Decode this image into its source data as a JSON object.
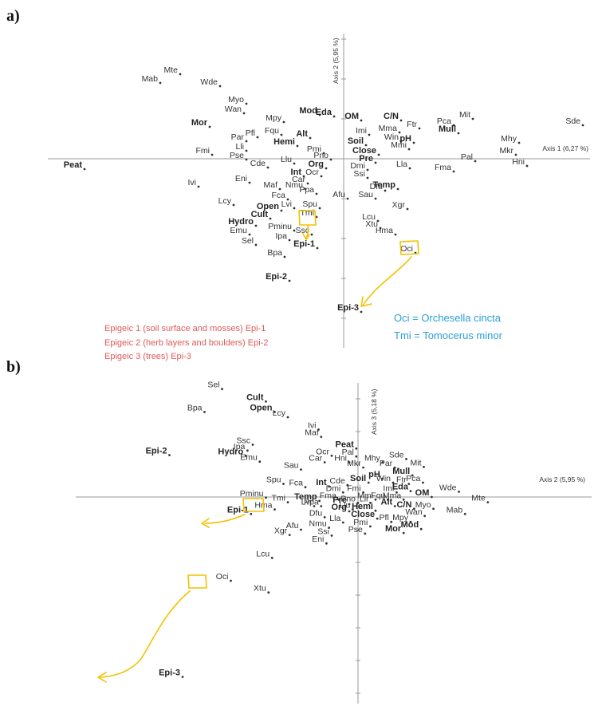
{
  "chart_data": [
    {
      "type": "scatter",
      "panel_label": "a)",
      "xlabel": "Axis 1 (6,27 %)",
      "ylabel": "Axis 2 (5,95 %)",
      "grid": false,
      "points": [
        {
          "label": "Mab",
          "x": -2.3,
          "y": 0.95,
          "bold": false
        },
        {
          "label": "Mte",
          "x": -2.05,
          "y": 1.06,
          "bold": false
        },
        {
          "label": "Wde",
          "x": -1.55,
          "y": 0.91,
          "bold": false
        },
        {
          "label": "Myo",
          "x": -1.22,
          "y": 0.69,
          "bold": false
        },
        {
          "label": "Wan",
          "x": -1.25,
          "y": 0.57,
          "bold": false
        },
        {
          "label": "Mor",
          "x": -1.68,
          "y": 0.4,
          "bold": true
        },
        {
          "label": "Mpy",
          "x": -0.75,
          "y": 0.46,
          "bold": false
        },
        {
          "label": "Fqu",
          "x": -0.78,
          "y": 0.3,
          "bold": false
        },
        {
          "label": "Pfl",
          "x": -1.08,
          "y": 0.27,
          "bold": false
        },
        {
          "label": "Par",
          "x": -1.22,
          "y": 0.22,
          "bold": false
        },
        {
          "label": "Lli",
          "x": -1.22,
          "y": 0.1,
          "bold": false
        },
        {
          "label": "Pse",
          "x": -1.22,
          "y": -0.01,
          "bold": false
        },
        {
          "label": "Fmi",
          "x": -1.65,
          "y": 0.05,
          "bold": false
        },
        {
          "label": "Hemi",
          "x": -0.58,
          "y": 0.16,
          "bold": true
        },
        {
          "label": "Alt",
          "x": -0.42,
          "y": 0.26,
          "bold": true
        },
        {
          "label": "Mod",
          "x": -0.3,
          "y": 0.55,
          "bold": true
        },
        {
          "label": "Eda",
          "x": -0.12,
          "y": 0.53,
          "bold": true
        },
        {
          "label": "Pmi",
          "x": -0.25,
          "y": 0.07,
          "bold": false
        },
        {
          "label": "Pno",
          "x": -0.16,
          "y": -0.01,
          "bold": false
        },
        {
          "label": "Peat",
          "x": -3.25,
          "y": -0.13,
          "bold": true
        },
        {
          "label": "Cde",
          "x": -0.95,
          "y": -0.11,
          "bold": false
        },
        {
          "label": "Llu",
          "x": -0.62,
          "y": -0.06,
          "bold": false
        },
        {
          "label": "Org",
          "x": -0.22,
          "y": -0.12,
          "bold": true
        },
        {
          "label": "Int",
          "x": -0.5,
          "y": -0.22,
          "bold": true
        },
        {
          "label": "Ocr",
          "x": -0.28,
          "y": -0.22,
          "bold": false
        },
        {
          "label": "Car",
          "x": -0.45,
          "y": -0.31,
          "bold": false
        },
        {
          "label": "Nmu",
          "x": -0.48,
          "y": -0.38,
          "bold": false
        },
        {
          "label": "Ppa",
          "x": -0.34,
          "y": -0.44,
          "bold": false
        },
        {
          "label": "Eni",
          "x": -1.18,
          "y": -0.3,
          "bold": false
        },
        {
          "label": "Ivi",
          "x": -1.82,
          "y": -0.35,
          "bold": false
        },
        {
          "label": "Maf",
          "x": -0.8,
          "y": -0.38,
          "bold": false
        },
        {
          "label": "Fca",
          "x": -0.7,
          "y": -0.51,
          "bold": false
        },
        {
          "label": "Lvi",
          "x": -0.62,
          "y": -0.62,
          "bold": false
        },
        {
          "label": "Open",
          "x": -0.78,
          "y": -0.65,
          "bold": true
        },
        {
          "label": "Cult",
          "x": -0.92,
          "y": -0.75,
          "bold": true
        },
        {
          "label": "Lcy",
          "x": -1.38,
          "y": -0.58,
          "bold": false
        },
        {
          "label": "Hydro",
          "x": -1.1,
          "y": -0.84,
          "bold": true
        },
        {
          "label": "Emu",
          "x": -1.18,
          "y": -0.95,
          "bold": false
        },
        {
          "label": "Sel",
          "x": -1.1,
          "y": -1.08,
          "bold": false
        },
        {
          "label": "Spu",
          "x": -0.3,
          "y": -0.62,
          "bold": false
        },
        {
          "label": "Tmi",
          "x": -0.34,
          "y": -0.73,
          "bold": false
        },
        {
          "label": "Ssc",
          "x": -0.4,
          "y": -0.95,
          "bold": false
        },
        {
          "label": "Pminu",
          "x": -0.62,
          "y": -0.9,
          "bold": false
        },
        {
          "label": "Ipa",
          "x": -0.68,
          "y": -1.02,
          "bold": false
        },
        {
          "label": "Bpa",
          "x": -0.74,
          "y": -1.23,
          "bold": false
        },
        {
          "label": "Epi-1",
          "x": -0.33,
          "y": -1.12,
          "bold": true
        },
        {
          "label": "Epi-2",
          "x": -0.68,
          "y": -1.53,
          "bold": true
        },
        {
          "label": "Afu",
          "x": 0.05,
          "y": -0.5,
          "bold": false
        },
        {
          "label": "OM",
          "x": 0.22,
          "y": 0.48,
          "bold": true
        },
        {
          "label": "C/N",
          "x": 0.72,
          "y": 0.48,
          "bold": true
        },
        {
          "label": "Imi",
          "x": 0.32,
          "y": 0.3,
          "bold": false
        },
        {
          "label": "Mma",
          "x": 0.7,
          "y": 0.33,
          "bold": false
        },
        {
          "label": "Ftr",
          "x": 0.95,
          "y": 0.38,
          "bold": false
        },
        {
          "label": "Soil",
          "x": 0.28,
          "y": 0.17,
          "bold": true
        },
        {
          "label": "Win",
          "x": 0.72,
          "y": 0.22,
          "bold": false
        },
        {
          "label": "pH",
          "x": 0.88,
          "y": 0.2,
          "bold": true
        },
        {
          "label": "Mmi",
          "x": 0.82,
          "y": 0.12,
          "bold": false
        },
        {
          "label": "Close",
          "x": 0.44,
          "y": 0.05,
          "bold": true
        },
        {
          "label": "Pre",
          "x": 0.4,
          "y": -0.05,
          "bold": true
        },
        {
          "label": "Dmi",
          "x": 0.3,
          "y": -0.14,
          "bold": false
        },
        {
          "label": "Ssi",
          "x": 0.3,
          "y": -0.24,
          "bold": false
        },
        {
          "label": "Lla",
          "x": 0.83,
          "y": -0.12,
          "bold": false
        },
        {
          "label": "Dfu",
          "x": 0.52,
          "y": -0.4,
          "bold": false
        },
        {
          "label": "Temp",
          "x": 0.68,
          "y": -0.38,
          "bold": true
        },
        {
          "label": "Sau",
          "x": 0.4,
          "y": -0.5,
          "bold": false
        },
        {
          "label": "Xgr",
          "x": 0.8,
          "y": -0.63,
          "bold": false
        },
        {
          "label": "Lcu",
          "x": 0.43,
          "y": -0.78,
          "bold": false
        },
        {
          "label": "Xtu",
          "x": 0.46,
          "y": -0.87,
          "bold": false
        },
        {
          "label": "Hma",
          "x": 0.65,
          "y": -0.95,
          "bold": false
        },
        {
          "label": "Oci",
          "x": 0.9,
          "y": -1.18,
          "bold": false
        },
        {
          "label": "Epi-3",
          "x": 0.22,
          "y": -1.92,
          "bold": true
        },
        {
          "label": "Mit",
          "x": 1.62,
          "y": 0.5,
          "bold": false
        },
        {
          "label": "Pca",
          "x": 1.38,
          "y": 0.42,
          "bold": false
        },
        {
          "label": "Mull",
          "x": 1.44,
          "y": 0.32,
          "bold": true
        },
        {
          "label": "Mhy",
          "x": 2.2,
          "y": 0.2,
          "bold": false
        },
        {
          "label": "Sde",
          "x": 3.0,
          "y": 0.42,
          "bold": false
        },
        {
          "label": "Mkr",
          "x": 2.16,
          "y": 0.05,
          "bold": false
        },
        {
          "label": "Pal",
          "x": 1.65,
          "y": -0.03,
          "bold": false
        },
        {
          "label": "Hni",
          "x": 2.3,
          "y": -0.09,
          "bold": false
        },
        {
          "label": "Fma",
          "x": 1.38,
          "y": -0.16,
          "bold": false
        }
      ],
      "annotations": [
        {
          "label": "Oci",
          "text": "Oci = Orchesella cincta"
        },
        {
          "label": "Tmi",
          "text": "Tmi = Tomocerus minor"
        }
      ],
      "legend": [
        "Epigeic 1 (soil surface and mosses) Epi-1",
        "Epigeic 2 (herb layers and boulders) Epi-2",
        "Epigeic 3 (trees) Epi-3"
      ]
    },
    {
      "type": "scatter",
      "panel_label": "b)",
      "xlabel": "Axis 2  (5,95 %)",
      "ylabel": "Axis 3 (5,18 %)",
      "grid": false,
      "points": [
        {
          "label": "Sel",
          "x": -1.55,
          "y": 1.65,
          "bold": false
        },
        {
          "label": "Bpa",
          "x": -1.75,
          "y": 1.3,
          "bold": false
        },
        {
          "label": "Cult",
          "x": -1.05,
          "y": 1.46,
          "bold": true
        },
        {
          "label": "Open",
          "x": -0.95,
          "y": 1.3,
          "bold": true
        },
        {
          "label": "Lcy",
          "x": -0.8,
          "y": 1.22,
          "bold": false
        },
        {
          "label": "Ivi",
          "x": -0.45,
          "y": 1.03,
          "bold": false
        },
        {
          "label": "Maf",
          "x": -0.42,
          "y": 0.92,
          "bold": false
        },
        {
          "label": "Ssc",
          "x": -1.2,
          "y": 0.8,
          "bold": false
        },
        {
          "label": "Ipa",
          "x": -1.26,
          "y": 0.71,
          "bold": false
        },
        {
          "label": "Hydro",
          "x": -1.28,
          "y": 0.63,
          "bold": true
        },
        {
          "label": "Emu",
          "x": -1.12,
          "y": 0.54,
          "bold": false
        },
        {
          "label": "Epi-2",
          "x": -2.15,
          "y": 0.64,
          "bold": true
        },
        {
          "label": "Sau",
          "x": -0.65,
          "y": 0.42,
          "bold": false
        },
        {
          "label": "Car",
          "x": -0.38,
          "y": 0.53,
          "bold": false
        },
        {
          "label": "Ocr",
          "x": -0.3,
          "y": 0.63,
          "bold": false
        },
        {
          "label": "Peat",
          "x": -0.02,
          "y": 0.74,
          "bold": true
        },
        {
          "label": "Pal",
          "x": -0.02,
          "y": 0.62,
          "bold": false
        },
        {
          "label": "Hni",
          "x": -0.1,
          "y": 0.53,
          "bold": false
        },
        {
          "label": "Mkr",
          "x": 0.06,
          "y": 0.45,
          "bold": false
        },
        {
          "label": "Mhy",
          "x": 0.28,
          "y": 0.53,
          "bold": false
        },
        {
          "label": "Sde",
          "x": 0.55,
          "y": 0.58,
          "bold": false
        },
        {
          "label": "Par",
          "x": 0.42,
          "y": 0.45,
          "bold": false
        },
        {
          "label": "Mit",
          "x": 0.75,
          "y": 0.46,
          "bold": false
        },
        {
          "label": "Spu",
          "x": -0.85,
          "y": 0.2,
          "bold": false
        },
        {
          "label": "Fca",
          "x": -0.6,
          "y": 0.15,
          "bold": false
        },
        {
          "label": "Int",
          "x": -0.33,
          "y": 0.16,
          "bold": true
        },
        {
          "label": "Cde",
          "x": -0.12,
          "y": 0.18,
          "bold": false
        },
        {
          "label": "pH",
          "x": 0.28,
          "y": 0.28,
          "bold": true
        },
        {
          "label": "Mull",
          "x": 0.62,
          "y": 0.33,
          "bold": true
        },
        {
          "label": "Soil",
          "x": 0.12,
          "y": 0.22,
          "bold": true
        },
        {
          "label": "Win",
          "x": 0.4,
          "y": 0.22,
          "bold": false
        },
        {
          "label": "Ftr",
          "x": 0.58,
          "y": 0.2,
          "bold": false
        },
        {
          "label": "Pca",
          "x": 0.74,
          "y": 0.22,
          "bold": false
        },
        {
          "label": "Wde",
          "x": 1.15,
          "y": 0.08,
          "bold": false
        },
        {
          "label": "Mte",
          "x": 1.48,
          "y": -0.08,
          "bold": false
        },
        {
          "label": "Mab",
          "x": 1.22,
          "y": -0.26,
          "bold": false
        },
        {
          "label": "Dmi",
          "x": -0.17,
          "y": 0.07,
          "bold": false
        },
        {
          "label": "Fmi",
          "x": 0.06,
          "y": 0.07,
          "bold": false
        },
        {
          "label": "Imi",
          "x": 0.44,
          "y": 0.07,
          "bold": false
        },
        {
          "label": "Eda",
          "x": 0.6,
          "y": 0.09,
          "bold": true
        },
        {
          "label": "OM",
          "x": 0.84,
          "y": 0.0,
          "bold": true
        },
        {
          "label": "Mmi",
          "x": 0.2,
          "y": -0.04,
          "bold": false
        },
        {
          "label": "Fqu",
          "x": 0.34,
          "y": -0.04,
          "bold": false
        },
        {
          "label": "Mma",
          "x": 0.52,
          "y": -0.04,
          "bold": false
        },
        {
          "label": "Myo",
          "x": 0.86,
          "y": -0.18,
          "bold": false
        },
        {
          "label": "Fma",
          "x": -0.22,
          "y": -0.04,
          "bold": false
        },
        {
          "label": "Pno",
          "x": 0.0,
          "y": -0.09,
          "bold": false
        },
        {
          "label": "Lli",
          "x": 0.14,
          "y": -0.09,
          "bold": false
        },
        {
          "label": "Alt",
          "x": 0.42,
          "y": -0.14,
          "bold": true
        },
        {
          "label": "C/N",
          "x": 0.64,
          "y": -0.18,
          "bold": true
        },
        {
          "label": "Wan",
          "x": 0.76,
          "y": -0.29,
          "bold": false
        },
        {
          "label": "Pre",
          "x": -0.1,
          "y": -0.11,
          "bold": true
        },
        {
          "label": "Temp",
          "x": -0.44,
          "y": -0.06,
          "bold": true
        },
        {
          "label": "Hemi",
          "x": 0.2,
          "y": -0.21,
          "bold": true
        },
        {
          "label": "Org",
          "x": -0.1,
          "y": -0.22,
          "bold": true
        },
        {
          "label": "Llu",
          "x": -0.06,
          "y": -0.19,
          "bold": false
        },
        {
          "label": "Close",
          "x": 0.22,
          "y": -0.33,
          "bold": true
        },
        {
          "label": "Mpy",
          "x": 0.6,
          "y": -0.38,
          "bold": false
        },
        {
          "label": "Mod",
          "x": 0.72,
          "y": -0.49,
          "bold": true
        },
        {
          "label": "Mor",
          "x": 0.52,
          "y": -0.55,
          "bold": true
        },
        {
          "label": "Pfl",
          "x": 0.38,
          "y": -0.38,
          "bold": false
        },
        {
          "label": "Pmi",
          "x": 0.14,
          "y": -0.45,
          "bold": false
        },
        {
          "label": "Pse",
          "x": 0.08,
          "y": -0.56,
          "bold": false
        },
        {
          "label": "Lla",
          "x": -0.17,
          "y": -0.39,
          "bold": false
        },
        {
          "label": "Lvi",
          "x": -0.5,
          "y": -0.14,
          "bold": false
        },
        {
          "label": "Ppa",
          "x": -0.42,
          "y": -0.14,
          "bold": false
        },
        {
          "label": "Dfu",
          "x": -0.38,
          "y": -0.31,
          "bold": false
        },
        {
          "label": "Tmi",
          "x": -0.8,
          "y": -0.08,
          "bold": false
        },
        {
          "label": "Pminu",
          "x": -1.05,
          "y": -0.01,
          "bold": false
        },
        {
          "label": "Hma",
          "x": -0.95,
          "y": -0.19,
          "bold": false
        },
        {
          "label": "Epi-1",
          "x": -1.22,
          "y": -0.26,
          "bold": true
        },
        {
          "label": "Afu",
          "x": -0.65,
          "y": -0.5,
          "bold": false
        },
        {
          "label": "Xgr",
          "x": -0.78,
          "y": -0.58,
          "bold": false
        },
        {
          "label": "Nmu",
          "x": -0.33,
          "y": -0.47,
          "bold": false
        },
        {
          "label": "Ssi",
          "x": -0.3,
          "y": -0.59,
          "bold": false
        },
        {
          "label": "Eni",
          "x": -0.36,
          "y": -0.71,
          "bold": false
        },
        {
          "label": "Lcu",
          "x": -0.98,
          "y": -0.93,
          "bold": false
        },
        {
          "label": "Oci",
          "x": -1.45,
          "y": -1.28,
          "bold": false
        },
        {
          "label": "Xtu",
          "x": -1.02,
          "y": -1.46,
          "bold": false
        },
        {
          "label": "Epi-3",
          "x": -2.0,
          "y": -2.75,
          "bold": true
        }
      ]
    }
  ]
}
